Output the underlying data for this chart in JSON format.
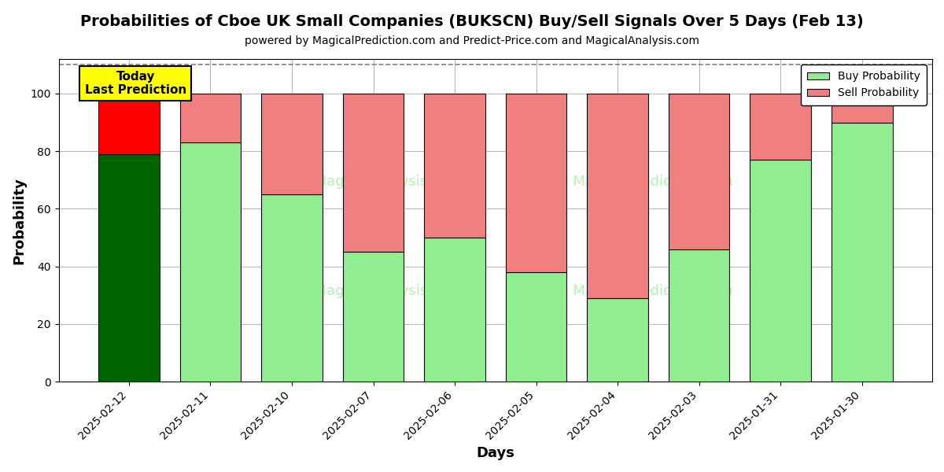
{
  "title": "Probabilities of Cboe UK Small Companies (BUKSCN) Buy/Sell Signals Over 5 Days (Feb 13)",
  "subtitle": "powered by MagicalPrediction.com and Predict-Price.com and MagicalAnalysis.com",
  "xlabel": "Days",
  "ylabel": "Probability",
  "categories": [
    "2025-02-12",
    "2025-02-11",
    "2025-02-10",
    "2025-02-07",
    "2025-02-06",
    "2025-02-05",
    "2025-02-04",
    "2025-02-03",
    "2025-01-31",
    "2025-01-30"
  ],
  "buy_values": [
    79,
    83,
    65,
    45,
    50,
    38,
    29,
    46,
    77,
    90
  ],
  "sell_values": [
    21,
    17,
    35,
    55,
    50,
    62,
    71,
    54,
    23,
    10
  ],
  "today_bar_buy_color": "#006400",
  "today_bar_sell_color": "#FF0000",
  "buy_color": "#90EE90",
  "sell_color": "#F08080",
  "today_annotation_bg": "#FFFF00",
  "today_annotation_text": "Today\nLast Prediction",
  "legend_buy_label": "Buy Probability",
  "legend_sell_label": "Sell Probability",
  "ylim_max": 112,
  "yticks": [
    0,
    20,
    40,
    60,
    80,
    100
  ],
  "dashed_line_y": 110,
  "background_color": "#ffffff",
  "grid_color": "#aaaaaa",
  "bar_width": 0.75
}
